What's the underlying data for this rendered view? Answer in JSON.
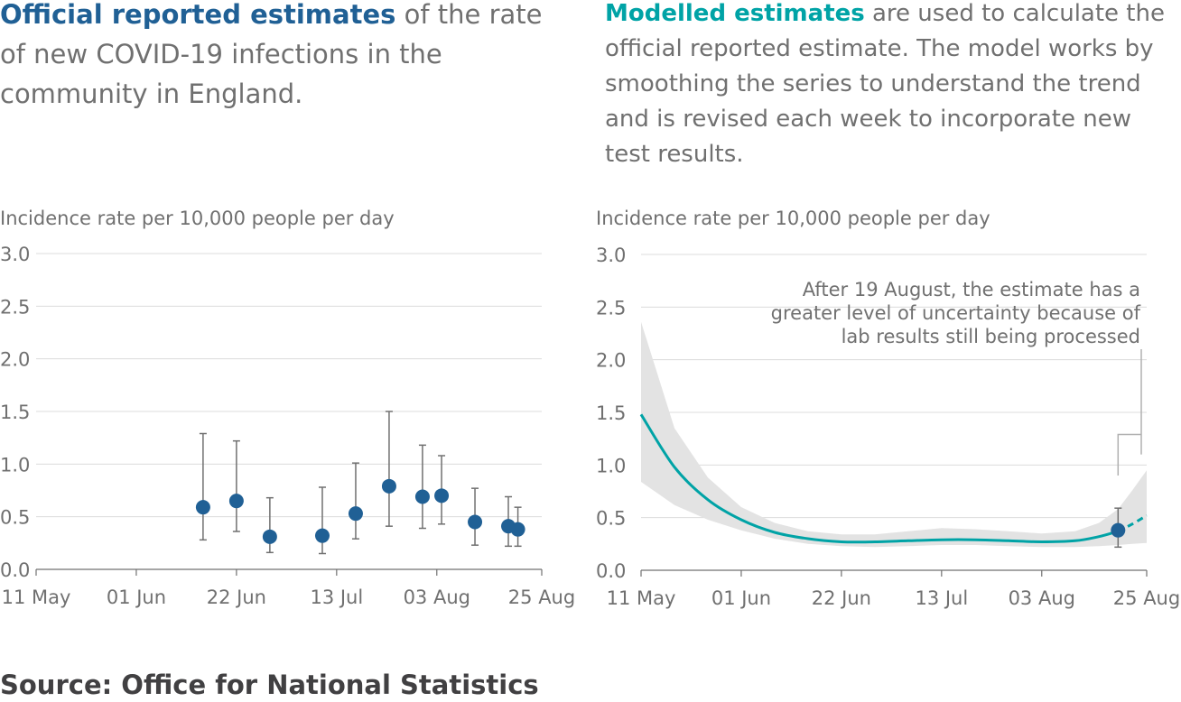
{
  "left_headline": {
    "strong": "Official reported estimates",
    "rest": " of the rate of new COVID-19 infections in the community in England."
  },
  "right_headline": {
    "strong": "Modelled estimates",
    "rest": " are used to calculate the official reported estimate. The model works by smoothing the series to understand the trend and is revised each week to incorporate new test results."
  },
  "source": "Source: Office for National Statistics",
  "colors": {
    "official": "#206095",
    "modelled": "#00a3a6",
    "band": "#e3e3e3",
    "errorbar": "#707070",
    "grid": "#dcdcdc",
    "axis": "#707070",
    "text": "#707070"
  },
  "chart_data": [
    {
      "type": "scatter",
      "ylabel": "Incidence rate per 10,000 people per day",
      "ylim": [
        0,
        3
      ],
      "yticks": [
        "0.0",
        "0.5",
        "1.0",
        "1.5",
        "2.0",
        "2.5",
        "3.0"
      ],
      "xlim": [
        "2020-05-11",
        "2020-08-25"
      ],
      "xticks": [
        {
          "date": "2020-05-11",
          "label": "11 May"
        },
        {
          "date": "2020-06-01",
          "label": "01 Jun"
        },
        {
          "date": "2020-06-22",
          "label": "22 Jun"
        },
        {
          "date": "2020-07-13",
          "label": "13 Jul"
        },
        {
          "date": "2020-08-03",
          "label": "03 Aug"
        },
        {
          "date": "2020-08-25",
          "label": "25 Aug"
        }
      ],
      "grid": true,
      "series": [
        {
          "points": [
            {
              "x": "2020-06-15",
              "y": 0.59,
              "lower": 0.28,
              "upper": 1.29
            },
            {
              "x": "2020-06-22",
              "y": 0.65,
              "lower": 0.36,
              "upper": 1.22
            },
            {
              "x": "2020-06-29",
              "y": 0.31,
              "lower": 0.16,
              "upper": 0.68
            },
            {
              "x": "2020-07-10",
              "y": 0.32,
              "lower": 0.15,
              "upper": 0.78
            },
            {
              "x": "2020-07-17",
              "y": 0.53,
              "lower": 0.29,
              "upper": 1.01
            },
            {
              "x": "2020-07-24",
              "y": 0.79,
              "lower": 0.41,
              "upper": 1.5
            },
            {
              "x": "2020-07-31",
              "y": 0.69,
              "lower": 0.39,
              "upper": 1.18
            },
            {
              "x": "2020-08-04",
              "y": 0.7,
              "lower": 0.43,
              "upper": 1.08
            },
            {
              "x": "2020-08-11",
              "y": 0.45,
              "lower": 0.23,
              "upper": 0.77
            },
            {
              "x": "2020-08-18",
              "y": 0.41,
              "lower": 0.22,
              "upper": 0.69
            },
            {
              "x": "2020-08-20",
              "y": 0.38,
              "lower": 0.22,
              "upper": 0.59
            }
          ]
        }
      ]
    },
    {
      "type": "line",
      "ylabel": "Incidence rate per 10,000 people per day",
      "ylim": [
        0,
        3
      ],
      "yticks": [
        "0.0",
        "0.5",
        "1.0",
        "1.5",
        "2.0",
        "2.5",
        "3.0"
      ],
      "xlim": [
        "2020-05-11",
        "2020-08-25"
      ],
      "xticks": [
        {
          "date": "2020-05-11",
          "label": "11 May"
        },
        {
          "date": "2020-06-01",
          "label": "01 Jun"
        },
        {
          "date": "2020-06-22",
          "label": "22 Jun"
        },
        {
          "date": "2020-07-13",
          "label": "13 Jul"
        },
        {
          "date": "2020-08-03",
          "label": "03 Aug"
        },
        {
          "date": "2020-08-25",
          "label": "25 Aug"
        }
      ],
      "grid": true,
      "series": [
        {
          "style": "line with credible-interval band; dashed after 19 August",
          "points": [
            {
              "x": "2020-05-11",
              "y": 1.48,
              "lower": 0.84,
              "upper": 2.36
            },
            {
              "x": "2020-05-18",
              "y": 0.98,
              "lower": 0.62,
              "upper": 1.35
            },
            {
              "x": "2020-05-25",
              "y": 0.67,
              "lower": 0.48,
              "upper": 0.88
            },
            {
              "x": "2020-06-01",
              "y": 0.48,
              "lower": 0.38,
              "upper": 0.6
            },
            {
              "x": "2020-06-08",
              "y": 0.36,
              "lower": 0.3,
              "upper": 0.45
            },
            {
              "x": "2020-06-15",
              "y": 0.3,
              "lower": 0.25,
              "upper": 0.37
            },
            {
              "x": "2020-06-22",
              "y": 0.27,
              "lower": 0.23,
              "upper": 0.34
            },
            {
              "x": "2020-06-29",
              "y": 0.27,
              "lower": 0.22,
              "upper": 0.34
            },
            {
              "x": "2020-07-06",
              "y": 0.28,
              "lower": 0.23,
              "upper": 0.37
            },
            {
              "x": "2020-07-13",
              "y": 0.29,
              "lower": 0.24,
              "upper": 0.4
            },
            {
              "x": "2020-07-20",
              "y": 0.29,
              "lower": 0.24,
              "upper": 0.39
            },
            {
              "x": "2020-07-27",
              "y": 0.28,
              "lower": 0.23,
              "upper": 0.37
            },
            {
              "x": "2020-08-03",
              "y": 0.27,
              "lower": 0.22,
              "upper": 0.35
            },
            {
              "x": "2020-08-10",
              "y": 0.28,
              "lower": 0.22,
              "upper": 0.37
            },
            {
              "x": "2020-08-15",
              "y": 0.32,
              "lower": 0.23,
              "upper": 0.45
            },
            {
              "x": "2020-08-19",
              "y": 0.37,
              "lower": 0.24,
              "upper": 0.58
            },
            {
              "x": "2020-08-22",
              "y": 0.44,
              "lower": 0.25,
              "upper": 0.76
            },
            {
              "x": "2020-08-25",
              "y": 0.52,
              "lower": 0.26,
              "upper": 0.95
            }
          ]
        }
      ],
      "highlight_point": {
        "x": "2020-08-19",
        "y": 0.38,
        "lower": 0.22,
        "upper": 0.59
      },
      "annotation": {
        "lines": [
          "After 19 August, the estimate has a",
          "greater level of uncertainty because of",
          "lab results still being processed"
        ],
        "from": "2020-08-19",
        "to": "2020-08-25"
      }
    }
  ]
}
